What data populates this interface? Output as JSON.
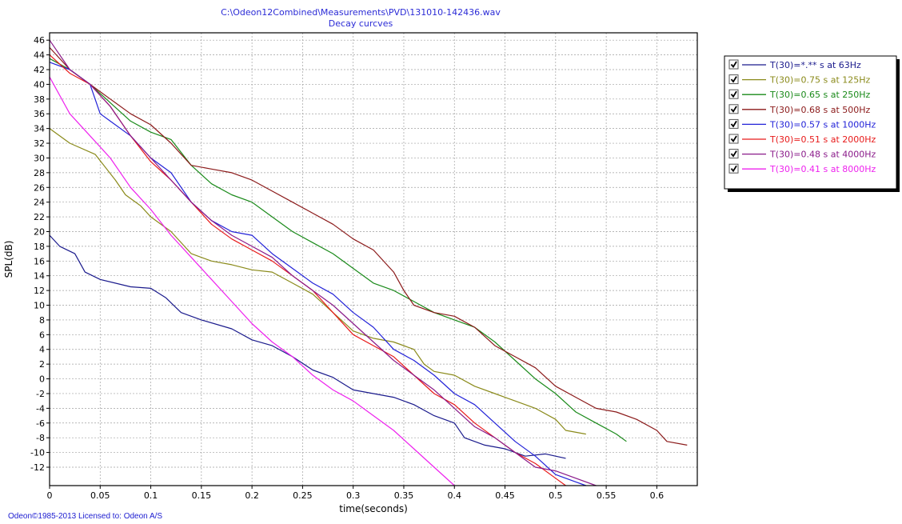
{
  "title_line1": "C:\\Odeon12Combined\\Measurements\\PVD\\131010-142436.wav",
  "title_line2": "Decay curcves",
  "footer": "Odeon©1985-2013  Licensed to: Odeon A/S",
  "colors": {
    "title": "#2b2bd6",
    "footer": "#1b1bd0",
    "grid": "#a0a0a0"
  },
  "chart_data": {
    "type": "line",
    "xlabel": "time(seconds)",
    "ylabel": "SPL(dB)",
    "xlim": [
      0,
      0.64
    ],
    "ylim": [
      -14.5,
      47
    ],
    "x_ticks": [
      0,
      0.05,
      0.1,
      0.15,
      0.2,
      0.25,
      0.3,
      0.35,
      0.4,
      0.45,
      0.5,
      0.55,
      0.6
    ],
    "x_tick_labels": [
      "0",
      "0.05",
      "0.1",
      "0.15",
      "0.2",
      "0.25",
      "0.3",
      "0.35",
      "0.4",
      "0.45",
      "0.5",
      "0.55",
      "0.6"
    ],
    "y_ticks": [
      -12,
      -10,
      -8,
      -6,
      -4,
      -2,
      0,
      2,
      4,
      6,
      8,
      10,
      12,
      14,
      16,
      18,
      20,
      22,
      24,
      26,
      28,
      30,
      32,
      34,
      36,
      38,
      40,
      42,
      44,
      46
    ],
    "grid": true,
    "legend_position": "right",
    "series": [
      {
        "name": "T(30)=*.** s at 63Hz",
        "color": "#1a1a8c",
        "checked": true,
        "points": [
          [
            0,
            19.5
          ],
          [
            0.01,
            18
          ],
          [
            0.025,
            17
          ],
          [
            0.035,
            14.5
          ],
          [
            0.05,
            13.5
          ],
          [
            0.08,
            12.5
          ],
          [
            0.1,
            12.3
          ],
          [
            0.115,
            11
          ],
          [
            0.13,
            9
          ],
          [
            0.15,
            8
          ],
          [
            0.18,
            6.8
          ],
          [
            0.2,
            5.3
          ],
          [
            0.22,
            4.5
          ],
          [
            0.24,
            3
          ],
          [
            0.26,
            1.2
          ],
          [
            0.28,
            0.2
          ],
          [
            0.3,
            -1.5
          ],
          [
            0.32,
            -2
          ],
          [
            0.34,
            -2.5
          ],
          [
            0.36,
            -3.5
          ],
          [
            0.38,
            -5
          ],
          [
            0.4,
            -6
          ],
          [
            0.41,
            -8
          ],
          [
            0.43,
            -9
          ],
          [
            0.45,
            -9.5
          ],
          [
            0.47,
            -10.5
          ],
          [
            0.49,
            -10.2
          ],
          [
            0.5,
            -10.5
          ],
          [
            0.51,
            -10.8
          ]
        ]
      },
      {
        "name": "T(30)=0.75 s at 125Hz",
        "color": "#8a8a1a",
        "checked": true,
        "points": [
          [
            0,
            34
          ],
          [
            0.02,
            32
          ],
          [
            0.045,
            30.5
          ],
          [
            0.065,
            27
          ],
          [
            0.075,
            25
          ],
          [
            0.09,
            23.5
          ],
          [
            0.1,
            22
          ],
          [
            0.12,
            20
          ],
          [
            0.14,
            17
          ],
          [
            0.16,
            16
          ],
          [
            0.18,
            15.5
          ],
          [
            0.2,
            14.8
          ],
          [
            0.22,
            14.5
          ],
          [
            0.24,
            13
          ],
          [
            0.26,
            11.5
          ],
          [
            0.28,
            9
          ],
          [
            0.3,
            6.5
          ],
          [
            0.32,
            5.5
          ],
          [
            0.34,
            5
          ],
          [
            0.36,
            4
          ],
          [
            0.37,
            2
          ],
          [
            0.38,
            1
          ],
          [
            0.4,
            0.5
          ],
          [
            0.42,
            -1
          ],
          [
            0.44,
            -2
          ],
          [
            0.46,
            -3
          ],
          [
            0.48,
            -4
          ],
          [
            0.5,
            -5.5
          ],
          [
            0.51,
            -7
          ],
          [
            0.53,
            -7.5
          ]
        ]
      },
      {
        "name": "T(30)=0.65 s at 250Hz",
        "color": "#1a8a1a",
        "checked": true,
        "points": [
          [
            0,
            43.5
          ],
          [
            0.02,
            42
          ],
          [
            0.04,
            40
          ],
          [
            0.06,
            37.5
          ],
          [
            0.08,
            35
          ],
          [
            0.1,
            33.5
          ],
          [
            0.12,
            32.5
          ],
          [
            0.14,
            29
          ],
          [
            0.16,
            26.5
          ],
          [
            0.18,
            25
          ],
          [
            0.2,
            24
          ],
          [
            0.22,
            22
          ],
          [
            0.24,
            20
          ],
          [
            0.26,
            18.5
          ],
          [
            0.28,
            17
          ],
          [
            0.3,
            15
          ],
          [
            0.32,
            13
          ],
          [
            0.34,
            12
          ],
          [
            0.36,
            10.5
          ],
          [
            0.38,
            9
          ],
          [
            0.4,
            8
          ],
          [
            0.42,
            7
          ],
          [
            0.44,
            5
          ],
          [
            0.46,
            2.5
          ],
          [
            0.48,
            0
          ],
          [
            0.5,
            -2
          ],
          [
            0.52,
            -4.5
          ],
          [
            0.54,
            -6
          ],
          [
            0.56,
            -7.5
          ],
          [
            0.57,
            -8.5
          ]
        ]
      },
      {
        "name": "T(30)=0.68 s at 500Hz",
        "color": "#8b1a1a",
        "checked": true,
        "points": [
          [
            0,
            45
          ],
          [
            0.02,
            42
          ],
          [
            0.04,
            40
          ],
          [
            0.06,
            38
          ],
          [
            0.08,
            36
          ],
          [
            0.1,
            34.5
          ],
          [
            0.12,
            32
          ],
          [
            0.14,
            29
          ],
          [
            0.16,
            28.5
          ],
          [
            0.18,
            28
          ],
          [
            0.2,
            27
          ],
          [
            0.22,
            25.5
          ],
          [
            0.24,
            24
          ],
          [
            0.26,
            22.5
          ],
          [
            0.28,
            21
          ],
          [
            0.3,
            19
          ],
          [
            0.32,
            17.5
          ],
          [
            0.34,
            14.5
          ],
          [
            0.35,
            12
          ],
          [
            0.36,
            10
          ],
          [
            0.38,
            9
          ],
          [
            0.4,
            8.5
          ],
          [
            0.42,
            7
          ],
          [
            0.44,
            4.5
          ],
          [
            0.46,
            3
          ],
          [
            0.48,
            1.5
          ],
          [
            0.5,
            -1
          ],
          [
            0.52,
            -2.5
          ],
          [
            0.54,
            -4
          ],
          [
            0.56,
            -4.5
          ],
          [
            0.58,
            -5.5
          ],
          [
            0.6,
            -7
          ],
          [
            0.61,
            -8.5
          ],
          [
            0.63,
            -9
          ]
        ]
      },
      {
        "name": "T(30)=0.57 s at 1000Hz",
        "color": "#2222d8",
        "checked": true,
        "points": [
          [
            0,
            43
          ],
          [
            0.02,
            42
          ],
          [
            0.04,
            40
          ],
          [
            0.05,
            36
          ],
          [
            0.06,
            35
          ],
          [
            0.08,
            33
          ],
          [
            0.1,
            30
          ],
          [
            0.12,
            28
          ],
          [
            0.14,
            24
          ],
          [
            0.16,
            21.5
          ],
          [
            0.18,
            20
          ],
          [
            0.2,
            19.5
          ],
          [
            0.22,
            17
          ],
          [
            0.24,
            15
          ],
          [
            0.26,
            13
          ],
          [
            0.28,
            11.5
          ],
          [
            0.3,
            9
          ],
          [
            0.32,
            7
          ],
          [
            0.34,
            4
          ],
          [
            0.36,
            2.5
          ],
          [
            0.38,
            0.5
          ],
          [
            0.4,
            -2
          ],
          [
            0.42,
            -3.5
          ],
          [
            0.44,
            -6
          ],
          [
            0.46,
            -8.5
          ],
          [
            0.48,
            -10.5
          ],
          [
            0.5,
            -13
          ],
          [
            0.52,
            -14
          ],
          [
            0.53,
            -14.5
          ]
        ]
      },
      {
        "name": "T(30)=0.51 s at 2000Hz",
        "color": "#e81a1a",
        "checked": true,
        "points": [
          [
            0,
            44
          ],
          [
            0.02,
            41.5
          ],
          [
            0.04,
            40
          ],
          [
            0.06,
            37
          ],
          [
            0.08,
            33
          ],
          [
            0.1,
            29.5
          ],
          [
            0.12,
            27
          ],
          [
            0.14,
            24
          ],
          [
            0.16,
            21
          ],
          [
            0.18,
            19
          ],
          [
            0.2,
            17.5
          ],
          [
            0.22,
            16
          ],
          [
            0.24,
            14
          ],
          [
            0.26,
            12
          ],
          [
            0.28,
            9
          ],
          [
            0.3,
            6
          ],
          [
            0.32,
            4.5
          ],
          [
            0.34,
            3
          ],
          [
            0.36,
            0.5
          ],
          [
            0.38,
            -2
          ],
          [
            0.4,
            -3.5
          ],
          [
            0.42,
            -6
          ],
          [
            0.44,
            -8
          ],
          [
            0.46,
            -10
          ],
          [
            0.48,
            -11.5
          ],
          [
            0.5,
            -13.5
          ],
          [
            0.51,
            -14.5
          ]
        ]
      },
      {
        "name": "T(30)=0.48 s at 4000Hz",
        "color": "#8a1a8a",
        "checked": true,
        "points": [
          [
            0,
            46
          ],
          [
            0.02,
            42
          ],
          [
            0.04,
            40
          ],
          [
            0.06,
            37
          ],
          [
            0.08,
            33
          ],
          [
            0.1,
            30
          ],
          [
            0.12,
            27
          ],
          [
            0.14,
            24
          ],
          [
            0.16,
            21.5
          ],
          [
            0.18,
            19.5
          ],
          [
            0.2,
            18
          ],
          [
            0.22,
            16.5
          ],
          [
            0.24,
            14
          ],
          [
            0.26,
            12
          ],
          [
            0.28,
            10
          ],
          [
            0.3,
            7.5
          ],
          [
            0.32,
            5
          ],
          [
            0.34,
            2.5
          ],
          [
            0.36,
            0.5
          ],
          [
            0.38,
            -1.5
          ],
          [
            0.4,
            -4
          ],
          [
            0.42,
            -6.5
          ],
          [
            0.44,
            -8
          ],
          [
            0.46,
            -10
          ],
          [
            0.48,
            -12
          ],
          [
            0.5,
            -12.5
          ],
          [
            0.52,
            -13.5
          ],
          [
            0.54,
            -14.5
          ]
        ]
      },
      {
        "name": "T(30)=0.41 s at 8000Hz",
        "color": "#ee22ee",
        "checked": true,
        "points": [
          [
            0,
            41
          ],
          [
            0.02,
            36
          ],
          [
            0.04,
            33
          ],
          [
            0.06,
            30
          ],
          [
            0.08,
            26
          ],
          [
            0.1,
            23
          ],
          [
            0.12,
            19.5
          ],
          [
            0.14,
            16.5
          ],
          [
            0.16,
            13.5
          ],
          [
            0.18,
            10.5
          ],
          [
            0.2,
            7.5
          ],
          [
            0.22,
            5
          ],
          [
            0.24,
            3
          ],
          [
            0.26,
            0.5
          ],
          [
            0.28,
            -1.5
          ],
          [
            0.3,
            -3
          ],
          [
            0.32,
            -5
          ],
          [
            0.34,
            -7
          ],
          [
            0.36,
            -9.5
          ],
          [
            0.38,
            -12
          ],
          [
            0.4,
            -14.5
          ]
        ]
      }
    ]
  }
}
